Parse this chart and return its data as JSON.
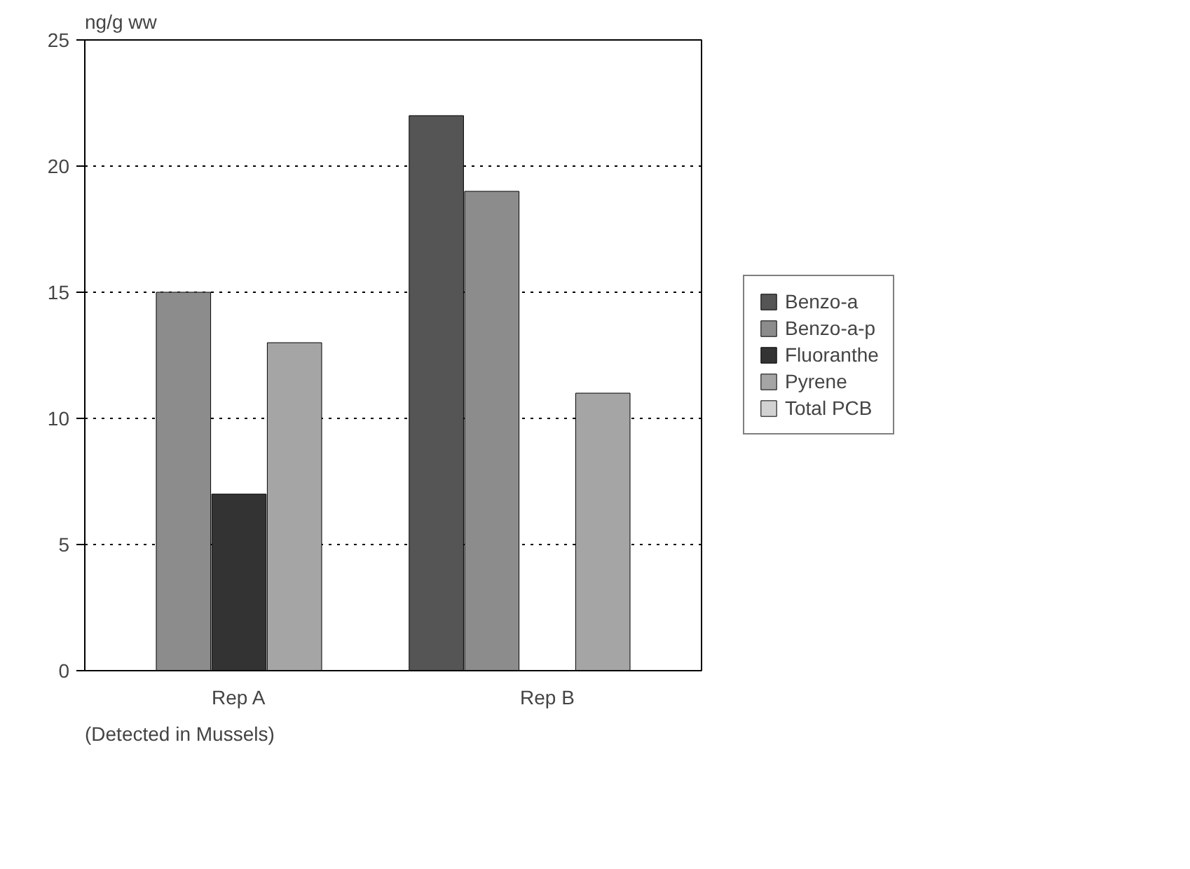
{
  "chart_data": {
    "type": "bar",
    "ylabel": "ng/g ww",
    "categories": [
      "Rep A",
      "Rep B"
    ],
    "series": [
      {
        "name": "Benzo-a",
        "color": "#555555",
        "values": [
          null,
          22
        ]
      },
      {
        "name": "Benzo-a-p",
        "color": "#8c8c8c",
        "values": [
          15,
          19
        ]
      },
      {
        "name": "Fluoranthe",
        "color": "#333333",
        "values": [
          7,
          null
        ]
      },
      {
        "name": "Pyrene",
        "color": "#a5a5a5",
        "values": [
          13,
          11
        ]
      },
      {
        "name": "Total PCB",
        "color": "#d2d2d2",
        "values": [
          null,
          null
        ]
      }
    ],
    "ylim": [
      0,
      25
    ],
    "yticks": [
      0,
      5,
      10,
      15,
      20,
      25
    ],
    "grid": "y",
    "legend": "right",
    "annotations": [
      "(Detected in Mussels)"
    ]
  }
}
